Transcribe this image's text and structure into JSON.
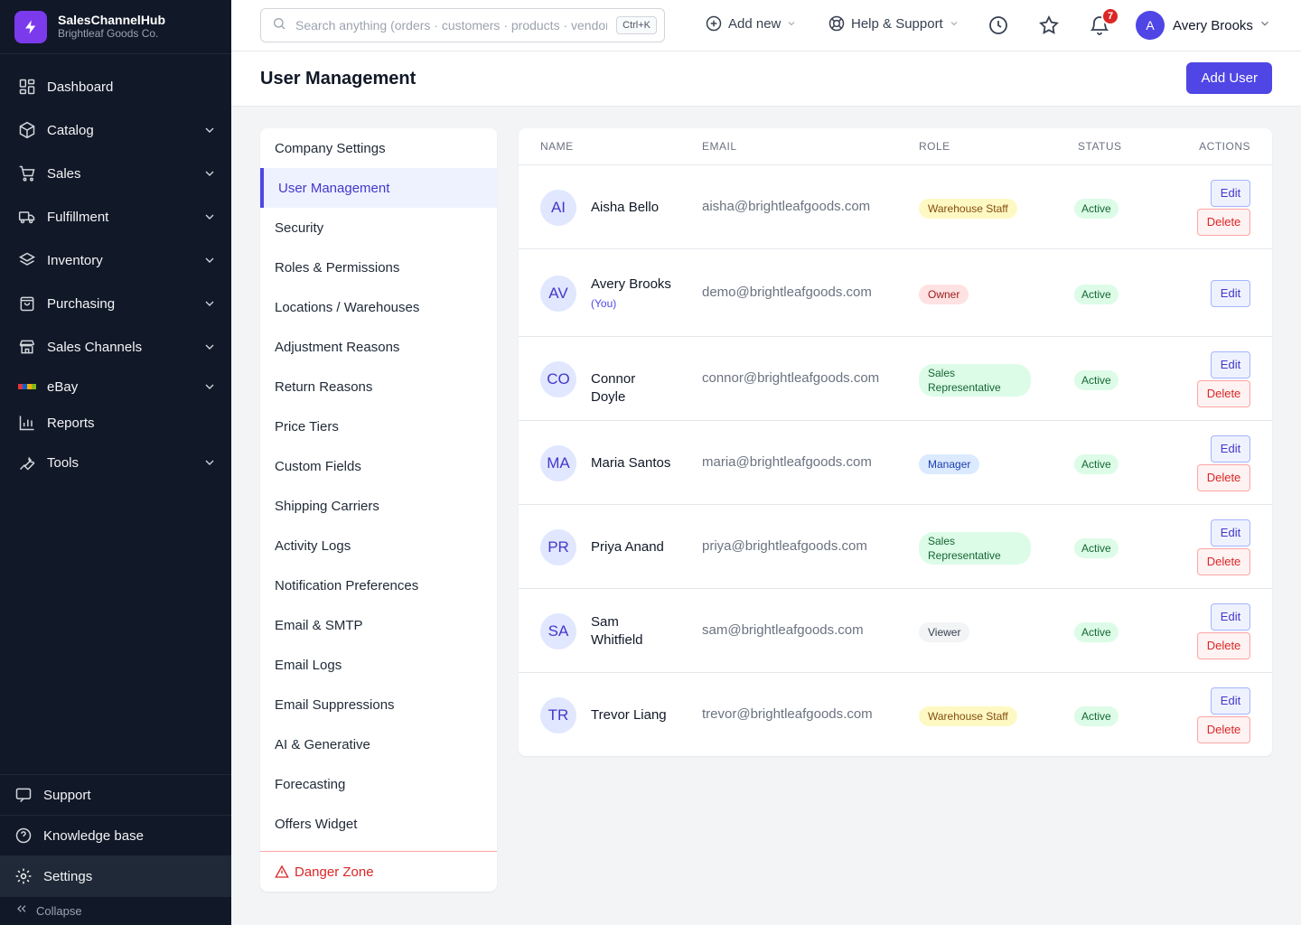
{
  "brand": {
    "name": "SalesChannelHub",
    "company": "Brightleaf Goods Co."
  },
  "sidebar": {
    "items": [
      {
        "label": "Dashboard",
        "icon": "dashboard-icon"
      },
      {
        "label": "Catalog",
        "icon": "box-icon"
      },
      {
        "label": "Sales",
        "icon": "cart-icon"
      },
      {
        "label": "Fulfillment",
        "icon": "truck-icon"
      },
      {
        "label": "Inventory",
        "icon": "layers-icon"
      },
      {
        "label": "Purchasing",
        "icon": "shopping-bag-icon"
      },
      {
        "label": "Sales Channels",
        "icon": "store-icon"
      },
      {
        "label": "eBay",
        "icon": "ebay-logo-icon"
      },
      {
        "label": "Reports",
        "icon": "bar-chart-icon"
      },
      {
        "label": "Tools",
        "icon": "wrench-icon"
      }
    ],
    "bottom": {
      "support": "Support",
      "knowledge": "Knowledge base",
      "settings": "Settings",
      "collapse": "Collapse"
    }
  },
  "topbar": {
    "search_placeholder": "Search anything (orders · customers · products · vendors)",
    "search_shortcut": "Ctrl+K",
    "add_new": "Add new",
    "help": "Help & Support",
    "notification_count": "7",
    "user_initial": "A",
    "user_name": "Avery Brooks"
  },
  "page": {
    "title": "User Management",
    "add_button": "Add User"
  },
  "settings_menu": {
    "items": [
      "Company Settings",
      "User Management",
      "Security",
      "Roles & Permissions",
      "Locations / Warehouses",
      "Adjustment Reasons",
      "Return Reasons",
      "Price Tiers",
      "Custom Fields",
      "Shipping Carriers",
      "Activity Logs",
      "Notification Preferences",
      "Email & SMTP",
      "Email Logs",
      "Email Suppressions",
      "AI & Generative",
      "Forecasting",
      "Offers Widget"
    ],
    "active": "User Management",
    "danger": "Danger Zone"
  },
  "table": {
    "columns": {
      "name": "Name",
      "email": "Email",
      "role": "Role",
      "status": "Status",
      "actions": "Actions"
    },
    "edit_label": "Edit",
    "delete_label": "Delete",
    "you_label": "(You)",
    "users": [
      {
        "initials": "AI",
        "name": "Aisha Bello",
        "email": "aisha@brightleafgoods.com",
        "role": "Warehouse Staff",
        "status": "Active"
      },
      {
        "initials": "AV",
        "name": "Avery Brooks",
        "email": "demo@brightleafgoods.com",
        "role": "Owner",
        "status": "Active"
      },
      {
        "initials": "CO",
        "name": "Connor Doyle",
        "email": "connor@brightleafgoods.com",
        "role": "Sales Representative",
        "status": "Active"
      },
      {
        "initials": "MA",
        "name": "Maria Santos",
        "email": "maria@brightleafgoods.com",
        "role": "Manager",
        "status": "Active"
      },
      {
        "initials": "PR",
        "name": "Priya Anand",
        "email": "priya@brightleafgoods.com",
        "role": "Sales Representative",
        "status": "Active"
      },
      {
        "initials": "SA",
        "name": "Sam Whitfield",
        "email": "sam@brightleafgoods.com",
        "role": "Viewer",
        "status": "Active"
      },
      {
        "initials": "TR",
        "name": "Trevor Liang",
        "email": "trevor@brightleafgoods.com",
        "role": "Warehouse Staff",
        "status": "Active"
      }
    ]
  },
  "colors": {
    "sidebar_bg": "#111827",
    "accent": "#4f46e5",
    "danger": "#dc2626",
    "status_active_bg": "#dcfce7",
    "role_warehouse_bg": "#fef9c3",
    "role_owner_bg": "#fee2e2",
    "role_sales_bg": "#dcfce7",
    "role_manager_bg": "#dbeafe",
    "role_viewer_bg": "#f3f4f6"
  }
}
